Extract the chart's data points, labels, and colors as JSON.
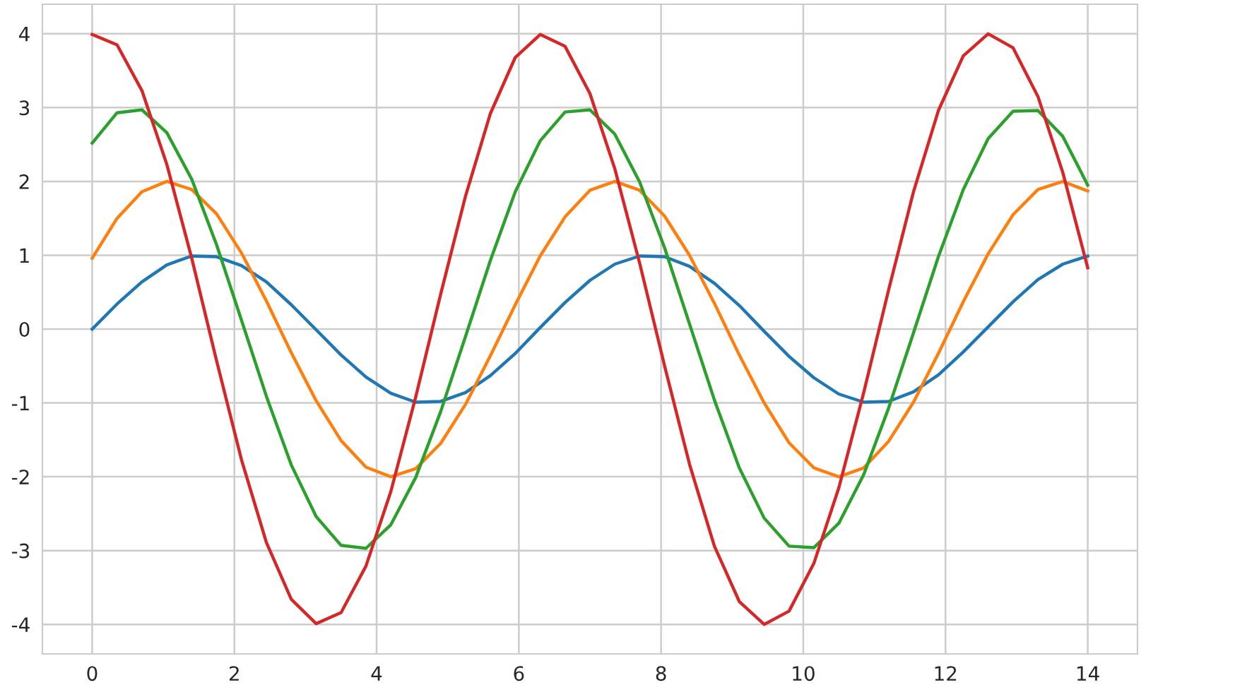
{
  "chart_data": {
    "type": "line",
    "x": [
      0,
      0.35,
      0.7,
      1.05,
      1.4,
      1.75,
      2.1,
      2.45,
      2.8,
      3.15,
      3.5,
      3.85,
      4.2,
      4.55,
      4.9,
      5.25,
      5.6,
      5.95,
      6.3,
      6.65,
      7,
      7.35,
      7.7,
      8.05,
      8.4,
      8.75,
      9.1,
      9.45,
      9.8,
      10.15,
      10.5,
      10.85,
      11.2,
      11.55,
      11.9,
      12.25,
      12.6,
      12.95,
      13.3,
      13.65,
      14
    ],
    "series": [
      {
        "color": "#1f77b4",
        "values": [
          0.0,
          0.34,
          0.64,
          0.87,
          0.99,
          0.98,
          0.86,
          0.64,
          0.33,
          -0.01,
          -0.35,
          -0.65,
          -0.87,
          -0.99,
          -0.98,
          -0.86,
          -0.63,
          -0.33,
          0.02,
          0.36,
          0.66,
          0.88,
          0.99,
          0.98,
          0.85,
          0.62,
          0.32,
          -0.03,
          -0.37,
          -0.66,
          -0.88,
          -0.99,
          -0.98,
          -0.85,
          -0.62,
          -0.31,
          0.03,
          0.37,
          0.67,
          0.88,
          0.99
        ]
      },
      {
        "color": "#ff7f0e",
        "values": [
          0.96,
          1.5,
          1.86,
          2.0,
          1.89,
          1.56,
          1.03,
          0.38,
          -0.32,
          -0.97,
          -1.51,
          -1.87,
          -2.0,
          -1.89,
          -1.55,
          -1.02,
          -0.36,
          0.33,
          0.99,
          1.52,
          1.88,
          2.0,
          1.88,
          1.53,
          1.0,
          0.35,
          -0.35,
          -1.0,
          -1.54,
          -1.88,
          -2.0,
          -1.88,
          -1.52,
          -0.99,
          -0.33,
          0.37,
          1.02,
          1.55,
          1.89,
          2.0,
          1.87
        ]
      },
      {
        "color": "#2ca02c",
        "values": [
          2.52,
          2.93,
          2.97,
          2.66,
          2.03,
          1.14,
          0.12,
          -0.91,
          -1.84,
          -2.54,
          -2.93,
          -2.97,
          -2.65,
          -2.01,
          -1.12,
          -0.1,
          0.93,
          1.86,
          2.55,
          2.94,
          2.97,
          2.64,
          1.99,
          1.1,
          0.07,
          -0.96,
          -1.88,
          -2.56,
          -2.94,
          -2.96,
          -2.63,
          -1.97,
          -1.07,
          -0.05,
          0.98,
          1.89,
          2.58,
          2.95,
          2.96,
          2.61,
          1.95
        ]
      },
      {
        "color": "#d62728",
        "values": [
          3.99,
          3.85,
          3.23,
          2.23,
          0.96,
          -0.43,
          -1.77,
          -2.89,
          -3.66,
          -3.99,
          -3.84,
          -3.21,
          -2.2,
          -0.92,
          0.47,
          1.8,
          2.92,
          3.68,
          3.99,
          3.83,
          3.19,
          2.17,
          0.89,
          -0.5,
          -1.83,
          -2.94,
          -3.69,
          -4.0,
          -3.82,
          -3.17,
          -2.15,
          -0.86,
          0.53,
          1.86,
          2.96,
          3.7,
          4.0,
          3.81,
          3.15,
          2.12,
          0.83
        ]
      }
    ],
    "xlim": [
      -0.7,
      14.7
    ],
    "ylim": [
      -4.4,
      4.4
    ],
    "xticks": [
      0,
      2,
      4,
      6,
      8,
      10,
      12,
      14
    ],
    "yticks": [
      -4,
      -3,
      -2,
      -1,
      0,
      1,
      2,
      3,
      4
    ],
    "grid": true,
    "marker": "none",
    "line_style": "solid"
  }
}
